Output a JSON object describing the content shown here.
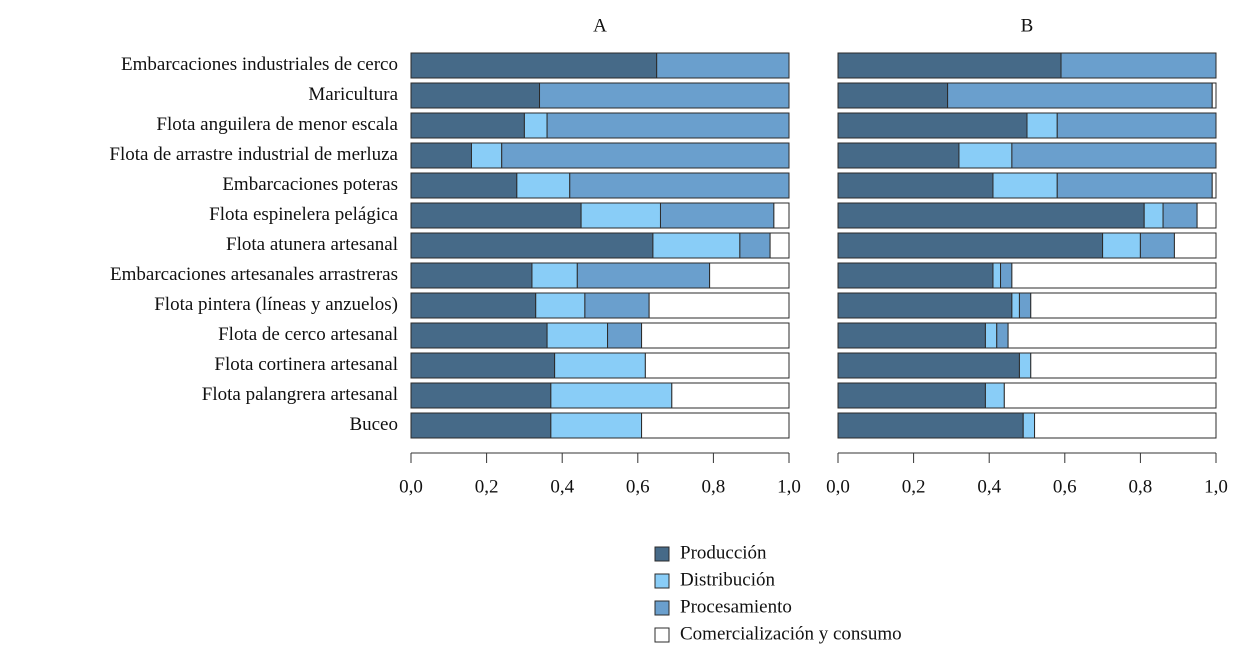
{
  "chart_data": [
    {
      "type": "stacked-barh",
      "title": "A",
      "categories": [
        "Embarcaciones industriales de cerco",
        "Maricultura",
        "Flota anguilera de menor escala",
        "Flota de arrastre industrial de merluza",
        "Embarcaciones poteras",
        "Flota espinelera pelágica",
        "Flota atunera artesanal",
        "Embarcaciones artesanales arrastreras",
        "Flota pintera (líneas y anzuelos)",
        "Flota de cerco artesanal",
        "Flota cortinera artesanal",
        "Flota palangrera artesanal",
        "Buceo"
      ],
      "series": [
        {
          "name": "Producción",
          "color": "#466a88",
          "values": [
            0.65,
            0.34,
            0.3,
            0.16,
            0.28,
            0.45,
            0.64,
            0.32,
            0.33,
            0.36,
            0.38,
            0.37,
            0.37
          ]
        },
        {
          "name": "Distribución",
          "color": "#89cdf7",
          "values": [
            0,
            0,
            0.06,
            0.08,
            0.14,
            0.21,
            0.23,
            0.12,
            0.13,
            0.16,
            0.24,
            0.32,
            0.24
          ]
        },
        {
          "name": "Procesamiento",
          "color": "#6a9fcd",
          "values": [
            0.35,
            0.66,
            0.64,
            0.76,
            0.58,
            0.3,
            0.08,
            0.35,
            0.17,
            0.09,
            0,
            0,
            0
          ]
        },
        {
          "name": "Comercialización y consumo",
          "color": "#ffffff",
          "values": [
            0,
            0,
            0,
            0,
            0,
            0.04,
            0.05,
            0.21,
            0.37,
            0.39,
            0.38,
            0.31,
            0.39
          ]
        }
      ],
      "xlim": [
        0,
        1
      ],
      "xticks": [
        {
          "value": 0,
          "label": "0,0"
        },
        {
          "value": 0.2,
          "label": "0,2"
        },
        {
          "value": 0.4,
          "label": "0,4"
        },
        {
          "value": 0.6,
          "label": "0,6"
        },
        {
          "value": 0.8,
          "label": "0,8"
        },
        {
          "value": 1,
          "label": "1,0"
        }
      ]
    },
    {
      "type": "stacked-barh",
      "title": "B",
      "series": [
        {
          "color": "#466a88",
          "values": [
            0.59,
            0.29,
            0.5,
            0.32,
            0.41,
            0.81,
            0.7,
            0.41,
            0.46,
            0.39,
            0.48,
            0.39,
            0.49
          ]
        },
        {
          "color": "#89cdf7",
          "values": [
            0,
            0,
            0.08,
            0.14,
            0.17,
            0.05,
            0.1,
            0.02,
            0.02,
            0.03,
            0.03,
            0.05,
            0.03
          ]
        },
        {
          "color": "#6a9fcd",
          "values": [
            0.41,
            0.7,
            0.42,
            0.54,
            0.41,
            0.09,
            0.09,
            0.03,
            0.03,
            0.03,
            0,
            0,
            0
          ]
        },
        {
          "color": "#ffffff",
          "values": [
            0,
            0.01,
            0,
            0,
            0.01,
            0.05,
            0.11,
            0.54,
            0.49,
            0.55,
            0.49,
            0.56,
            0.48
          ]
        }
      ],
      "xlim": [
        0,
        1
      ],
      "xticks": [
        {
          "value": 0,
          "label": "0,0"
        },
        {
          "value": 0.2,
          "label": "0,2"
        },
        {
          "value": 0.4,
          "label": "0,4"
        },
        {
          "value": 0.6,
          "label": "0,6"
        },
        {
          "value": 0.8,
          "label": "0,8"
        },
        {
          "value": 1,
          "label": "1,0"
        }
      ]
    }
  ]
}
